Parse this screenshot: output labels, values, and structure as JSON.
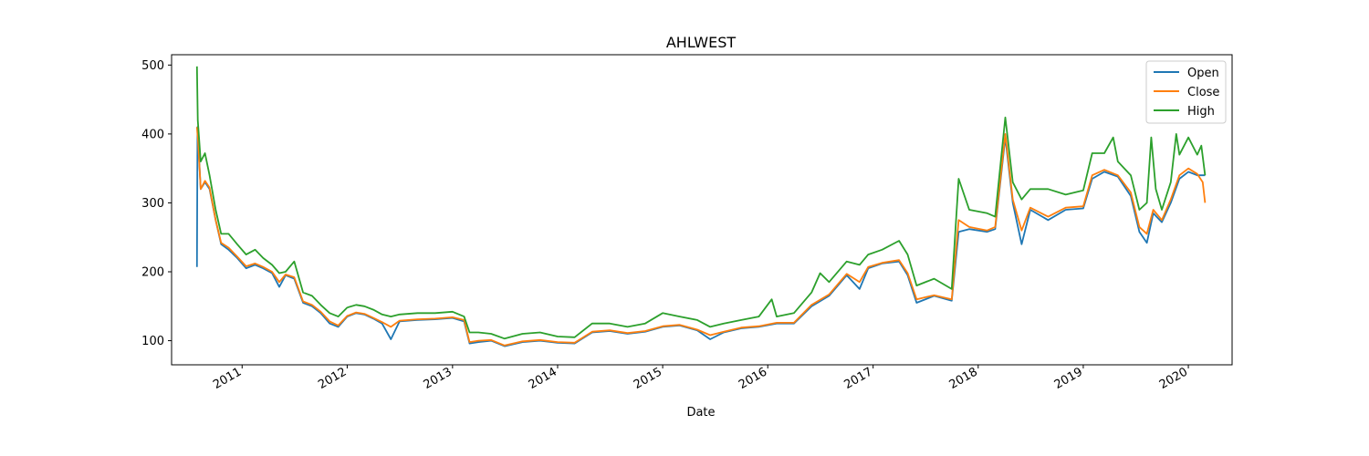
{
  "chart_data": {
    "type": "line",
    "title": "AHLWEST",
    "xlabel": "Date",
    "ylabel": "",
    "xlim": [
      "2010-05-01",
      "2020-06-01"
    ],
    "ylim": [
      65,
      515
    ],
    "x_ticks": [
      "2011",
      "2012",
      "2013",
      "2014",
      "2015",
      "2016",
      "2017",
      "2018",
      "2019",
      "2020"
    ],
    "y_ticks": [
      100,
      200,
      300,
      400,
      500
    ],
    "grid": false,
    "legend_position": "top-right",
    "series": [
      {
        "name": "Open",
        "color": "#1f77b4",
        "points": [
          [
            "2010-07-28",
            207
          ],
          [
            "2010-07-30",
            410
          ],
          [
            "2010-08-10",
            320
          ],
          [
            "2010-08-25",
            330
          ],
          [
            "2010-09-10",
            320
          ],
          [
            "2010-10-01",
            275
          ],
          [
            "2010-10-20",
            240
          ],
          [
            "2010-11-15",
            232
          ],
          [
            "2010-12-15",
            220
          ],
          [
            "2011-01-15",
            205
          ],
          [
            "2011-02-15",
            210
          ],
          [
            "2011-03-15",
            205
          ],
          [
            "2011-04-15",
            198
          ],
          [
            "2011-05-10",
            178
          ],
          [
            "2011-06-01",
            195
          ],
          [
            "2011-07-01",
            190
          ],
          [
            "2011-08-01",
            155
          ],
          [
            "2011-09-01",
            150
          ],
          [
            "2011-10-01",
            140
          ],
          [
            "2011-11-01",
            125
          ],
          [
            "2011-12-01",
            120
          ],
          [
            "2012-01-01",
            135
          ],
          [
            "2012-02-01",
            140
          ],
          [
            "2012-03-01",
            138
          ],
          [
            "2012-04-01",
            132
          ],
          [
            "2012-05-01",
            125
          ],
          [
            "2012-06-01",
            102
          ],
          [
            "2012-07-01",
            128
          ],
          [
            "2012-09-01",
            130
          ],
          [
            "2012-11-01",
            131
          ],
          [
            "2013-01-01",
            133
          ],
          [
            "2013-02-10",
            128
          ],
          [
            "2013-03-01",
            96
          ],
          [
            "2013-04-01",
            98
          ],
          [
            "2013-05-15",
            100
          ],
          [
            "2013-07-01",
            92
          ],
          [
            "2013-09-01",
            98
          ],
          [
            "2013-11-01",
            100
          ],
          [
            "2014-01-01",
            97
          ],
          [
            "2014-03-01",
            96
          ],
          [
            "2014-05-01",
            112
          ],
          [
            "2014-07-01",
            114
          ],
          [
            "2014-09-01",
            110
          ],
          [
            "2014-11-01",
            113
          ],
          [
            "2015-01-01",
            120
          ],
          [
            "2015-03-01",
            122
          ],
          [
            "2015-05-01",
            115
          ],
          [
            "2015-06-15",
            102
          ],
          [
            "2015-08-01",
            112
          ],
          [
            "2015-10-01",
            118
          ],
          [
            "2015-12-01",
            120
          ],
          [
            "2016-02-01",
            125
          ],
          [
            "2016-04-01",
            125
          ],
          [
            "2016-06-01",
            150
          ],
          [
            "2016-08-01",
            165
          ],
          [
            "2016-10-01",
            195
          ],
          [
            "2016-11-15",
            175
          ],
          [
            "2016-12-15",
            205
          ],
          [
            "2017-02-01",
            212
          ],
          [
            "2017-04-01",
            215
          ],
          [
            "2017-05-01",
            195
          ],
          [
            "2017-06-01",
            155
          ],
          [
            "2017-08-01",
            165
          ],
          [
            "2017-10-01",
            158
          ],
          [
            "2017-10-25",
            258
          ],
          [
            "2017-12-01",
            262
          ],
          [
            "2018-02-01",
            258
          ],
          [
            "2018-03-01",
            262
          ],
          [
            "2018-04-05",
            395
          ],
          [
            "2018-05-01",
            300
          ],
          [
            "2018-06-01",
            240
          ],
          [
            "2018-07-01",
            290
          ],
          [
            "2018-09-01",
            275
          ],
          [
            "2018-11-01",
            290
          ],
          [
            "2019-01-01",
            292
          ],
          [
            "2019-02-01",
            335
          ],
          [
            "2019-03-15",
            345
          ],
          [
            "2019-05-01",
            338
          ],
          [
            "2019-06-15",
            310
          ],
          [
            "2019-07-15",
            258
          ],
          [
            "2019-08-10",
            242
          ],
          [
            "2019-09-01",
            285
          ],
          [
            "2019-10-01",
            272
          ],
          [
            "2019-11-01",
            300
          ],
          [
            "2019-12-01",
            335
          ],
          [
            "2020-01-01",
            345
          ],
          [
            "2020-02-01",
            340
          ],
          [
            "2020-02-28",
            340
          ]
        ]
      },
      {
        "name": "Close",
        "color": "#ff7f0e",
        "points": [
          [
            "2010-07-28",
            410
          ],
          [
            "2010-08-01",
            390
          ],
          [
            "2010-08-10",
            320
          ],
          [
            "2010-08-25",
            332
          ],
          [
            "2010-09-10",
            322
          ],
          [
            "2010-10-01",
            275
          ],
          [
            "2010-10-20",
            242
          ],
          [
            "2010-11-15",
            235
          ],
          [
            "2010-12-15",
            222
          ],
          [
            "2011-01-15",
            208
          ],
          [
            "2011-02-15",
            212
          ],
          [
            "2011-03-15",
            207
          ],
          [
            "2011-04-15",
            200
          ],
          [
            "2011-05-10",
            185
          ],
          [
            "2011-06-01",
            196
          ],
          [
            "2011-07-01",
            192
          ],
          [
            "2011-08-01",
            157
          ],
          [
            "2011-09-01",
            152
          ],
          [
            "2011-10-01",
            142
          ],
          [
            "2011-11-01",
            128
          ],
          [
            "2011-12-01",
            122
          ],
          [
            "2012-01-01",
            136
          ],
          [
            "2012-02-01",
            141
          ],
          [
            "2012-03-01",
            139
          ],
          [
            "2012-04-01",
            133
          ],
          [
            "2012-05-01",
            127
          ],
          [
            "2012-06-01",
            120
          ],
          [
            "2012-07-01",
            129
          ],
          [
            "2012-09-01",
            131
          ],
          [
            "2012-11-01",
            132
          ],
          [
            "2013-01-01",
            134
          ],
          [
            "2013-02-10",
            130
          ],
          [
            "2013-03-01",
            98
          ],
          [
            "2013-04-01",
            100
          ],
          [
            "2013-05-15",
            101
          ],
          [
            "2013-07-01",
            93
          ],
          [
            "2013-09-01",
            99
          ],
          [
            "2013-11-01",
            101
          ],
          [
            "2014-01-01",
            98
          ],
          [
            "2014-03-01",
            97
          ],
          [
            "2014-05-01",
            113
          ],
          [
            "2014-07-01",
            115
          ],
          [
            "2014-09-01",
            111
          ],
          [
            "2014-11-01",
            114
          ],
          [
            "2015-01-01",
            121
          ],
          [
            "2015-03-01",
            123
          ],
          [
            "2015-05-01",
            116
          ],
          [
            "2015-06-15",
            108
          ],
          [
            "2015-08-01",
            113
          ],
          [
            "2015-10-01",
            119
          ],
          [
            "2015-12-01",
            121
          ],
          [
            "2016-02-01",
            126
          ],
          [
            "2016-04-01",
            126
          ],
          [
            "2016-06-01",
            152
          ],
          [
            "2016-08-01",
            167
          ],
          [
            "2016-10-01",
            197
          ],
          [
            "2016-11-15",
            185
          ],
          [
            "2016-12-15",
            207
          ],
          [
            "2017-02-01",
            213
          ],
          [
            "2017-04-01",
            217
          ],
          [
            "2017-05-01",
            198
          ],
          [
            "2017-06-01",
            160
          ],
          [
            "2017-08-01",
            166
          ],
          [
            "2017-10-01",
            160
          ],
          [
            "2017-10-25",
            275
          ],
          [
            "2017-12-01",
            265
          ],
          [
            "2018-02-01",
            260
          ],
          [
            "2018-03-01",
            265
          ],
          [
            "2018-04-05",
            400
          ],
          [
            "2018-05-01",
            305
          ],
          [
            "2018-06-01",
            260
          ],
          [
            "2018-07-01",
            293
          ],
          [
            "2018-09-01",
            280
          ],
          [
            "2018-11-01",
            293
          ],
          [
            "2019-01-01",
            295
          ],
          [
            "2019-02-01",
            340
          ],
          [
            "2019-03-15",
            348
          ],
          [
            "2019-05-01",
            340
          ],
          [
            "2019-06-15",
            315
          ],
          [
            "2019-07-15",
            265
          ],
          [
            "2019-08-10",
            255
          ],
          [
            "2019-09-01",
            290
          ],
          [
            "2019-10-01",
            275
          ],
          [
            "2019-11-01",
            305
          ],
          [
            "2019-12-01",
            340
          ],
          [
            "2020-01-01",
            350
          ],
          [
            "2020-02-01",
            342
          ],
          [
            "2020-02-20",
            330
          ],
          [
            "2020-02-28",
            300
          ]
        ]
      },
      {
        "name": "High",
        "color": "#2ca02c",
        "points": [
          [
            "2010-07-28",
            498
          ],
          [
            "2010-07-31",
            420
          ],
          [
            "2010-08-10",
            360
          ],
          [
            "2010-08-25",
            372
          ],
          [
            "2010-09-10",
            340
          ],
          [
            "2010-10-01",
            290
          ],
          [
            "2010-10-20",
            255
          ],
          [
            "2010-11-15",
            255
          ],
          [
            "2010-12-15",
            240
          ],
          [
            "2011-01-15",
            225
          ],
          [
            "2011-02-15",
            232
          ],
          [
            "2011-03-15",
            220
          ],
          [
            "2011-04-15",
            210
          ],
          [
            "2011-05-10",
            198
          ],
          [
            "2011-06-01",
            200
          ],
          [
            "2011-07-01",
            215
          ],
          [
            "2011-08-01",
            170
          ],
          [
            "2011-09-01",
            165
          ],
          [
            "2011-10-01",
            152
          ],
          [
            "2011-11-01",
            140
          ],
          [
            "2011-12-01",
            135
          ],
          [
            "2012-01-01",
            148
          ],
          [
            "2012-02-01",
            152
          ],
          [
            "2012-03-01",
            150
          ],
          [
            "2012-04-01",
            145
          ],
          [
            "2012-05-01",
            138
          ],
          [
            "2012-06-01",
            135
          ],
          [
            "2012-07-01",
            138
          ],
          [
            "2012-09-01",
            140
          ],
          [
            "2012-11-01",
            140
          ],
          [
            "2013-01-01",
            142
          ],
          [
            "2013-02-10",
            135
          ],
          [
            "2013-03-01",
            112
          ],
          [
            "2013-04-01",
            112
          ],
          [
            "2013-05-15",
            110
          ],
          [
            "2013-07-01",
            103
          ],
          [
            "2013-09-01",
            110
          ],
          [
            "2013-11-01",
            112
          ],
          [
            "2014-01-01",
            106
          ],
          [
            "2014-03-01",
            105
          ],
          [
            "2014-05-01",
            125
          ],
          [
            "2014-07-01",
            125
          ],
          [
            "2014-09-01",
            120
          ],
          [
            "2014-11-01",
            125
          ],
          [
            "2015-01-01",
            140
          ],
          [
            "2015-03-01",
            135
          ],
          [
            "2015-05-01",
            130
          ],
          [
            "2015-06-15",
            120
          ],
          [
            "2015-08-01",
            125
          ],
          [
            "2015-10-01",
            130
          ],
          [
            "2015-12-01",
            135
          ],
          [
            "2016-01-15",
            160
          ],
          [
            "2016-02-01",
            135
          ],
          [
            "2016-04-01",
            140
          ],
          [
            "2016-06-01",
            170
          ],
          [
            "2016-07-01",
            198
          ],
          [
            "2016-08-01",
            185
          ],
          [
            "2016-10-01",
            215
          ],
          [
            "2016-11-15",
            210
          ],
          [
            "2016-12-15",
            225
          ],
          [
            "2017-02-01",
            232
          ],
          [
            "2017-04-01",
            245
          ],
          [
            "2017-05-01",
            225
          ],
          [
            "2017-06-01",
            180
          ],
          [
            "2017-08-01",
            190
          ],
          [
            "2017-10-01",
            175
          ],
          [
            "2017-10-25",
            335
          ],
          [
            "2017-12-01",
            290
          ],
          [
            "2018-02-01",
            285
          ],
          [
            "2018-03-01",
            280
          ],
          [
            "2018-04-05",
            424
          ],
          [
            "2018-05-01",
            330
          ],
          [
            "2018-06-01",
            305
          ],
          [
            "2018-07-01",
            320
          ],
          [
            "2018-09-01",
            320
          ],
          [
            "2018-11-01",
            312
          ],
          [
            "2019-01-01",
            318
          ],
          [
            "2019-02-01",
            372
          ],
          [
            "2019-03-15",
            372
          ],
          [
            "2019-04-15",
            395
          ],
          [
            "2019-05-01",
            360
          ],
          [
            "2019-06-15",
            340
          ],
          [
            "2019-07-15",
            290
          ],
          [
            "2019-08-10",
            300
          ],
          [
            "2019-08-25",
            395
          ],
          [
            "2019-09-10",
            320
          ],
          [
            "2019-10-01",
            290
          ],
          [
            "2019-11-01",
            330
          ],
          [
            "2019-11-20",
            400
          ],
          [
            "2019-12-01",
            370
          ],
          [
            "2020-01-01",
            395
          ],
          [
            "2020-02-01",
            370
          ],
          [
            "2020-02-15",
            383
          ],
          [
            "2020-02-28",
            340
          ]
        ]
      }
    ]
  }
}
